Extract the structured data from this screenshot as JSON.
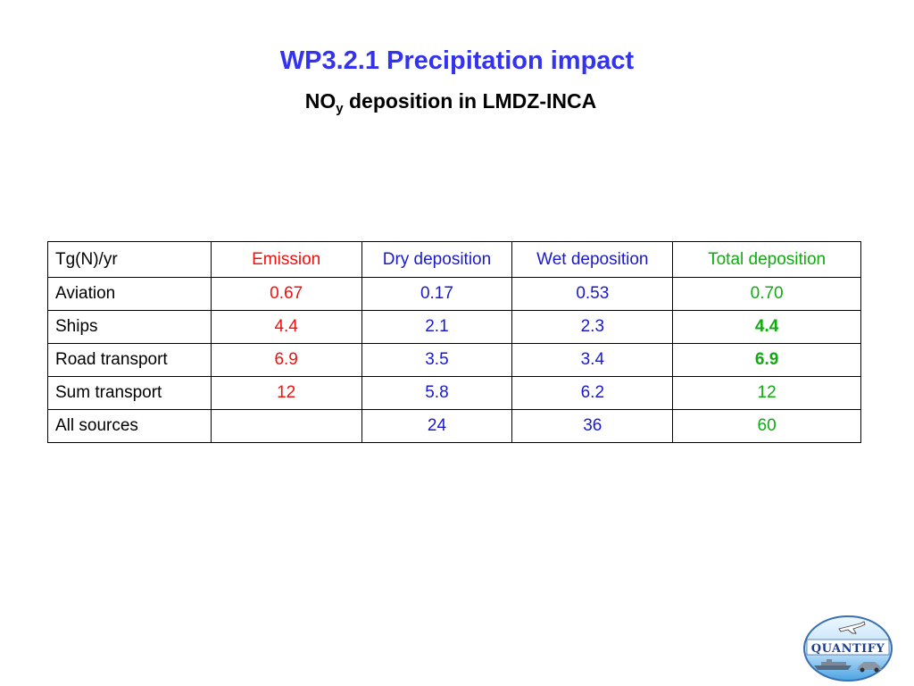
{
  "slide": {
    "title": "WP3.2.1 Precipitation impact",
    "subtitle_main": "NO",
    "subtitle_sub": "y",
    "subtitle_rest": " deposition in LMDZ-INCA"
  },
  "table": {
    "header": [
      "Tg(N)/yr",
      "Emission",
      "Dry deposition",
      "Wet deposition",
      "Total deposition"
    ],
    "rows": [
      {
        "label": "Aviation",
        "emission": "0.67",
        "dry": "0.17",
        "wet": "0.53",
        "total": "0.70",
        "total_bold": false
      },
      {
        "label": "Ships",
        "emission": "4.4",
        "dry": "2.1",
        "wet": "2.3",
        "total": "4.4",
        "total_bold": true
      },
      {
        "label": "Road transport",
        "emission": "6.9",
        "dry": "3.5",
        "wet": "3.4",
        "total": "6.9",
        "total_bold": true
      },
      {
        "label": "Sum transport",
        "emission": "12",
        "dry": "5.8",
        "wet": "6.2",
        "total": "12",
        "total_bold": false
      },
      {
        "label": "All sources",
        "emission": "",
        "dry": "24",
        "wet": "36",
        "total": "60",
        "total_bold": false
      }
    ]
  },
  "colors": {
    "title": "#3333ee",
    "emission": "#ee1111",
    "deposition": "#1a1acc",
    "total": "#11aa11"
  },
  "logo": {
    "text": "QUANTIFY",
    "icon": "quantify-logo-icon"
  }
}
